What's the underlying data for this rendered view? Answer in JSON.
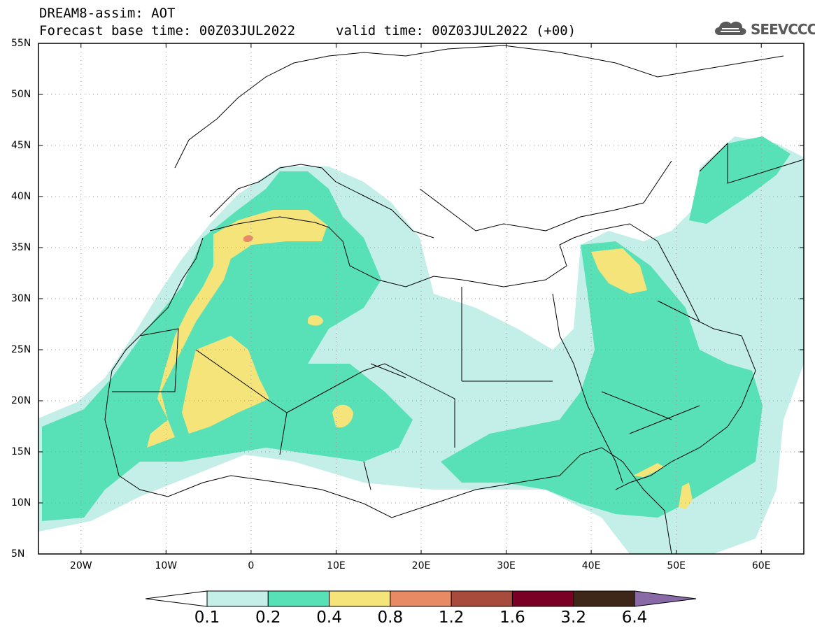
{
  "header": {
    "title": "DREAM8-assim: AOT",
    "base_time": "Forecast base time: 00Z03JUL2022",
    "valid_time": "valid time: 00Z03JUL2022 (+00)"
  },
  "logo": {
    "text": "SEEVCCC",
    "icon": "cloud-icon"
  },
  "map": {
    "lat_labels": [
      "55N",
      "50N",
      "45N",
      "40N",
      "35N",
      "30N",
      "25N",
      "20N",
      "15N",
      "10N",
      "5N"
    ],
    "lon_labels": [
      "20W",
      "10W",
      "0",
      "10E",
      "20E",
      "30E",
      "40E",
      "50E",
      "60E"
    ],
    "lat_range": [
      5,
      55
    ],
    "lon_range": [
      -25,
      65
    ],
    "grid": "dotted",
    "background": "#ffffff",
    "border_color": "#000000"
  },
  "colorbar": {
    "labels": [
      "0.1",
      "0.2",
      "0.4",
      "0.8",
      "1.2",
      "1.6",
      "3.2",
      "6.4"
    ],
    "colors": [
      "#ffffff",
      "#c4efe9",
      "#58e0b6",
      "#f5e47a",
      "#e88a64",
      "#a84b3c",
      "#7a0026",
      "#3e2718",
      "#8a6aa6"
    ]
  }
}
